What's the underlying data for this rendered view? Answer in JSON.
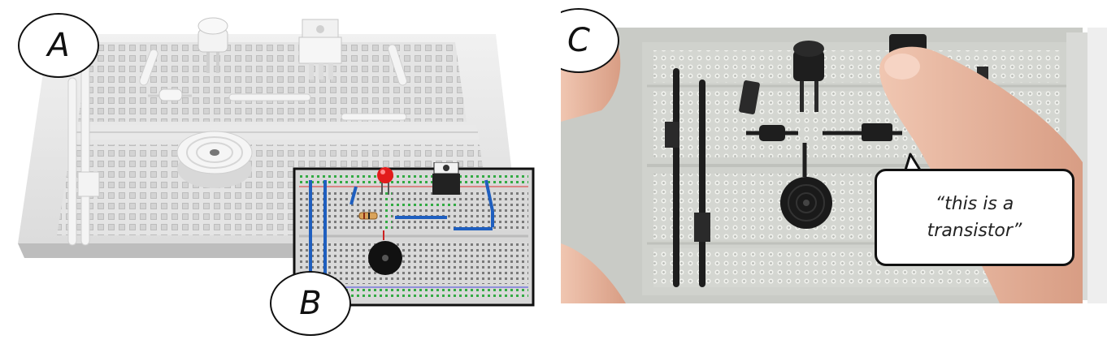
{
  "panels": {
    "a": {
      "label": "A"
    },
    "b": {
      "label": "B"
    },
    "c": {
      "label": "C",
      "speech": "“this is a transistor”"
    }
  },
  "colors": {
    "render_plastic": "#e6e6e6",
    "inset_border": "#111111",
    "wire_blue": "#1f5fbf",
    "hole_green": "#33aa44",
    "led_red": "#e21b1b",
    "print_plastic": "#cfd1cc",
    "print_parts": "#1e1e1e",
    "skin": "#e8b79f"
  },
  "icons": [
    "led-icon",
    "transistor-icon",
    "buzzer-icon",
    "resistor-icon"
  ]
}
